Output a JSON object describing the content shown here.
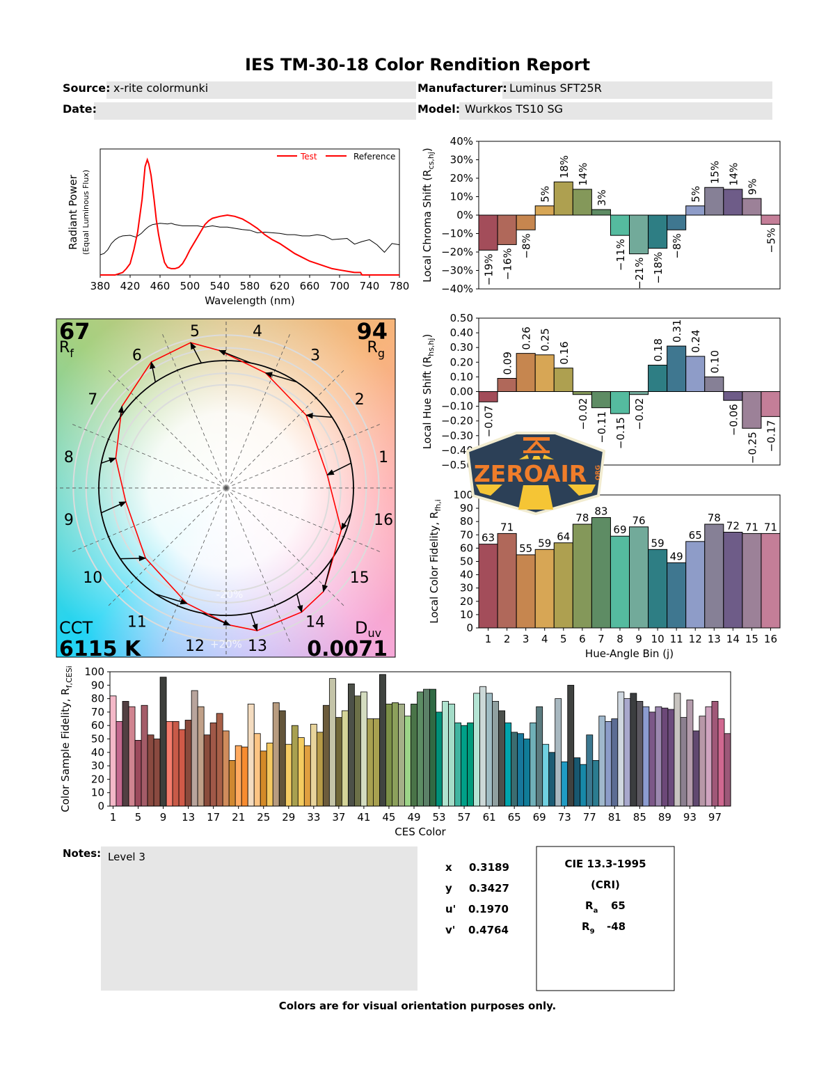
{
  "title": "IES TM-30-18 Color Rendition Report",
  "header": {
    "source_label": "Source:",
    "source": "x-rite colormunki",
    "manufacturer_label": "Manufacturer:",
    "manufacturer": "Luminus SFT25R",
    "date_label": "Date:",
    "date": "",
    "model_label": "Model:",
    "model": "Wurkkos TS10 SG"
  },
  "chart_data": [
    {
      "type": "line",
      "xlabel": "Wavelength (nm)",
      "ylabel": "Radiant Power",
      "ylabel2": "(Equal Luminous Flux)",
      "xlim": [
        380,
        780
      ],
      "xticks": [
        380,
        420,
        460,
        500,
        540,
        580,
        620,
        660,
        700,
        740,
        780
      ],
      "legend": {
        "position": "top-right",
        "legend_line_color": "#ff0000"
      },
      "series": [
        {
          "name": "Test",
          "color": "#ff0000",
          "x": [
            380,
            400,
            405,
            410,
            415,
            420,
            425,
            430,
            433,
            436,
            440,
            443,
            445,
            448,
            452,
            455,
            458,
            462,
            466,
            470,
            475,
            480,
            485,
            490,
            495,
            500,
            505,
            510,
            515,
            520,
            525,
            530,
            540,
            550,
            560,
            570,
            580,
            590,
            600,
            610,
            620,
            630,
            640,
            650,
            660,
            670,
            680,
            690,
            700,
            710,
            720,
            728,
            730,
            780
          ],
          "y": [
            0.0,
            0.0,
            0.01,
            0.02,
            0.05,
            0.09,
            0.2,
            0.34,
            0.47,
            0.6,
            0.86,
            0.915,
            0.88,
            0.79,
            0.6,
            0.44,
            0.32,
            0.2,
            0.1,
            0.06,
            0.05,
            0.05,
            0.06,
            0.09,
            0.14,
            0.2,
            0.25,
            0.3,
            0.35,
            0.4,
            0.43,
            0.45,
            0.465,
            0.475,
            0.465,
            0.445,
            0.41,
            0.37,
            0.32,
            0.28,
            0.25,
            0.21,
            0.17,
            0.14,
            0.11,
            0.09,
            0.07,
            0.05,
            0.04,
            0.03,
            0.02,
            0.02,
            0.0,
            0.0
          ]
        },
        {
          "name": "Reference",
          "color": "#000000",
          "x": [
            380,
            385,
            390,
            395,
            400,
            405,
            410,
            420,
            428,
            435,
            440,
            445,
            450,
            460,
            470,
            475,
            480,
            490,
            500,
            510,
            520,
            530,
            540,
            550,
            560,
            570,
            580,
            590,
            600,
            610,
            620,
            630,
            640,
            650,
            660,
            670,
            680,
            690,
            700,
            710,
            720,
            730,
            740,
            750,
            760,
            770,
            780
          ],
          "y": [
            0.16,
            0.17,
            0.2,
            0.25,
            0.28,
            0.3,
            0.31,
            0.315,
            0.3,
            0.33,
            0.36,
            0.385,
            0.4,
            0.41,
            0.405,
            0.41,
            0.4,
            0.39,
            0.39,
            0.39,
            0.38,
            0.39,
            0.38,
            0.38,
            0.37,
            0.36,
            0.355,
            0.335,
            0.34,
            0.335,
            0.33,
            0.32,
            0.32,
            0.31,
            0.31,
            0.32,
            0.31,
            0.28,
            0.285,
            0.29,
            0.245,
            0.265,
            0.28,
            0.24,
            0.18,
            0.25,
            0.24
          ]
        }
      ]
    },
    {
      "type": "scatter",
      "rf_value": "67",
      "rf_label": "R",
      "rf_sub": "f",
      "rg_value": "94",
      "rg_label": "R",
      "rg_sub": "g",
      "cct_label": "CCT",
      "cct_value": "6115 K",
      "duv_label": "D",
      "duv_sub": "uv",
      "duv_value": "0.0071",
      "ring_minus": "-20%",
      "ring_plus": "+20%",
      "bin_labels": [
        "1",
        "2",
        "3",
        "4",
        "5",
        "6",
        "7",
        "8",
        "9",
        "10",
        "11",
        "12",
        "13",
        "14",
        "15",
        "16"
      ],
      "test_color": "#ff0000",
      "reference_color": "#000000",
      "test_points": [
        [
          0.794,
          0.102
        ],
        [
          0.629,
          0.571
        ],
        [
          0.31,
          0.903
        ],
        [
          -0.055,
          1.08
        ],
        [
          -0.279,
          1.141
        ],
        [
          -0.588,
          0.989
        ],
        [
          -0.818,
          0.642
        ],
        [
          -0.867,
          0.234
        ],
        [
          -0.788,
          -0.108
        ],
        [
          -0.633,
          -0.551
        ],
        [
          -0.307,
          -0.907
        ],
        [
          0.031,
          -1.077
        ],
        [
          0.243,
          -1.12
        ],
        [
          0.593,
          -0.974
        ],
        [
          0.763,
          -0.814
        ],
        [
          0.904,
          -0.328
        ]
      ]
    },
    {
      "type": "bar",
      "ylabel": "Local Chroma Shift (R",
      "ylabel_sub": "cs,hj",
      "ylabel_end": ")",
      "ylim": [
        -40,
        40
      ],
      "yticks": [
        40,
        30,
        20,
        10,
        0,
        -10,
        -20,
        -30,
        -40
      ],
      "unit": "%",
      "categories": [
        "1",
        "2",
        "3",
        "4",
        "5",
        "6",
        "7",
        "8",
        "9",
        "10",
        "11",
        "12",
        "13",
        "14",
        "15",
        "16"
      ],
      "values": [
        -19,
        -16,
        -8,
        5,
        18,
        14,
        3,
        -11,
        -21,
        -18,
        -8,
        5,
        15,
        14,
        9,
        -5
      ]
    },
    {
      "type": "bar",
      "ylabel": "Local Hue Shift (R",
      "ylabel_sub": "hs,hj",
      "ylabel_end": ")",
      "ylim": [
        -0.5,
        0.5
      ],
      "yticks": [
        0.5,
        0.4,
        0.3,
        0.2,
        0.1,
        0.0,
        -0.1,
        -0.2,
        -0.3,
        -0.4,
        -0.5
      ],
      "categories": [
        "1",
        "2",
        "3",
        "4",
        "5",
        "6",
        "7",
        "8",
        "9",
        "10",
        "11",
        "12",
        "13",
        "14",
        "15",
        "16"
      ],
      "values": [
        -0.07,
        0.09,
        0.26,
        0.25,
        0.16,
        -0.02,
        -0.11,
        -0.15,
        -0.02,
        0.18,
        0.31,
        0.24,
        0.1,
        -0.06,
        -0.25,
        -0.17
      ]
    },
    {
      "type": "bar",
      "ylabel": "Local Color Fidelity, R",
      "ylabel_sub": "fh,i",
      "xlabel": "Hue-Angle Bin (j)",
      "ylim": [
        0,
        100
      ],
      "yticks": [
        100,
        90,
        80,
        70,
        60,
        50,
        40,
        30,
        20,
        10,
        0
      ],
      "categories": [
        "1",
        "2",
        "3",
        "4",
        "5",
        "6",
        "7",
        "8",
        "9",
        "10",
        "11",
        "12",
        "13",
        "14",
        "15",
        "16"
      ],
      "values": [
        63,
        71,
        55,
        59,
        64,
        78,
        83,
        69,
        76,
        59,
        49,
        65,
        78,
        72,
        71,
        71
      ]
    },
    {
      "type": "bar",
      "ylabel": "Color Sample Fidelity, R",
      "ylabel_sub": "f,CESi",
      "xlabel": "CES Color",
      "ylim": [
        0,
        100
      ],
      "yticks": [
        100,
        90,
        80,
        70,
        60,
        50,
        40,
        30,
        20,
        10,
        0
      ],
      "xticks": [
        1,
        5,
        9,
        13,
        17,
        21,
        25,
        29,
        33,
        37,
        41,
        45,
        49,
        53,
        57,
        61,
        65,
        69,
        73,
        77,
        81,
        85,
        89,
        93,
        97
      ],
      "values": [
        82,
        63,
        78,
        74,
        49,
        75,
        53,
        50,
        96,
        63,
        63,
        57,
        64,
        86,
        74,
        53,
        62,
        69,
        56,
        34,
        45,
        44,
        76,
        54,
        41,
        47,
        77,
        71,
        46,
        60,
        51,
        45,
        61,
        55,
        75,
        95,
        66,
        71,
        91,
        82,
        85,
        65,
        65,
        98,
        76,
        77,
        76,
        67,
        76,
        85,
        87,
        87,
        70,
        78,
        76,
        62,
        60,
        62,
        84,
        89,
        84,
        78,
        71,
        62,
        55,
        54,
        50,
        62,
        74,
        46,
        40,
        80,
        33,
        90,
        36,
        31,
        53,
        34,
        67,
        63,
        65,
        85,
        80,
        84,
        78,
        74,
        70,
        74,
        73,
        72,
        84,
        66,
        79,
        56,
        67,
        74,
        78,
        65,
        54
      ],
      "colors": [
        "#f4b8c8",
        "#c4688e",
        "#523f42",
        "#d08490",
        "#9c4a5c",
        "#a45c68",
        "#8a4a40",
        "#8a4a40",
        "#3d3f3c",
        "#f47c6c",
        "#c85a48",
        "#d05a48",
        "#8a4a3c",
        "#b8a49c",
        "#c0a088",
        "#8a4c3c",
        "#a05848",
        "#a86048",
        "#d08c5c",
        "#d08830",
        "#ffaa60",
        "#f88c30",
        "#f4dcc0",
        "#fcc484",
        "#d48a28",
        "#f4c860",
        "#b89c80",
        "#63553a",
        "#f4cc64",
        "#a8a050",
        "#f4cc60",
        "#e0a040",
        "#e8d49c",
        "#b89c48",
        "#6c5c3c",
        "#c4c4a8",
        "#706838",
        "#d4d498",
        "#4c5048",
        "#6c7048",
        "#d4dcc0",
        "#a8a050",
        "#a8a050",
        "#404440",
        "#7c9048",
        "#8ca05c",
        "#a4b088",
        "#9cd488",
        "#4a7448",
        "#5c8c64",
        "#5c8068",
        "#306a44",
        "#00907a",
        "#b0e4d0",
        "#a4dcc8",
        "#40b4a0",
        "#00a088",
        "#009c7c",
        "#b4e4d4",
        "#ccd8d8",
        "#a0bcc4",
        "#90a0a0",
        "#4c504c",
        "#00a4ac",
        "#3c6c70",
        "#18789c",
        "#107c98",
        "#70b0b8",
        "#5c7c80",
        "#70d0e0",
        "#1c5c74",
        "#a8b8c0",
        "#209cc4",
        "#404240",
        "#185870",
        "#1888a8",
        "#3c7890",
        "#2c7c90",
        "#a0b8cc",
        "#8c9cc8",
        "#5c6c94",
        "#d0d8e0",
        "#a8a8cc",
        "#3c3e40",
        "#5c5860",
        "#8c9cd0",
        "#7c5888",
        "#9c88b0",
        "#6c4878",
        "#6c4c7c",
        "#c8c4c0",
        "#8c8090",
        "#b49cac",
        "#604870",
        "#b898a8",
        "#d0a4c0",
        "#a05878",
        "#d06890",
        "#9c5878"
      ]
    }
  ],
  "bin_colors": [
    "#a34d5a",
    "#b0685a",
    "#c6864f",
    "#d7a655",
    "#aea050",
    "#84985a",
    "#5e8c64",
    "#55bb9f",
    "#72aa9a",
    "#2e7e84",
    "#3f7790",
    "#8e9cc8",
    "#868096",
    "#6e5c88",
    "#9c8198",
    "#c47e98"
  ],
  "notes": {
    "label": "Notes:",
    "text": "Level 3"
  },
  "colorimetry": [
    {
      "label": "x",
      "value": "0.3189"
    },
    {
      "label": "y",
      "value": "0.3427"
    },
    {
      "label": "u'",
      "value": "0.1970"
    },
    {
      "label": "v'",
      "value": "0.4764"
    }
  ],
  "cri": {
    "title": "CIE 13.3-1995",
    "subtitle": "(CRI)",
    "ra_label": "R",
    "ra_sub": "a",
    "ra_value": "65",
    "r9_label": "R",
    "r9_sub": "9",
    "r9_value": "-48"
  },
  "footer": "Colors are for visual orientation purposes only.",
  "logo": {
    "text": "ZEROAIR",
    "suffix": "ORG",
    "bg_color": "#2c4057",
    "text_color": "#f07d2a",
    "accent_color": "#f5c535"
  }
}
